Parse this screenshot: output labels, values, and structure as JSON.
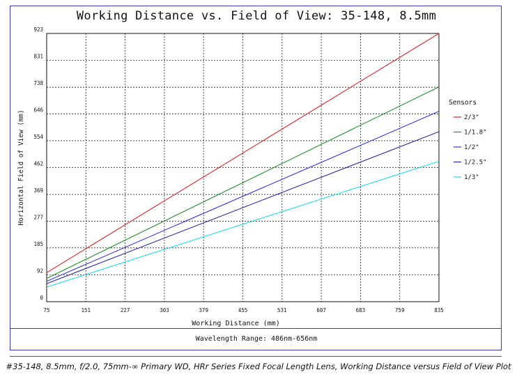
{
  "chart_data": {
    "type": "line",
    "title": "Working Distance vs. Field of View: 35-148, 8.5mm",
    "xlabel": "Working Distance (mm)",
    "ylabel": "Horizontal Field of View (mm)",
    "xlim": [
      75,
      835
    ],
    "ylim": [
      0,
      923
    ],
    "x_ticks": [
      "75",
      "151",
      "227",
      "303",
      "379",
      "455",
      "531",
      "607",
      "683",
      "759",
      "835"
    ],
    "y_ticks": [
      "0",
      "92",
      "185",
      "277",
      "369",
      "462",
      "554",
      "646",
      "738",
      "831",
      "923"
    ],
    "grid": true,
    "legend_title": "Sensors",
    "legend_position": "right",
    "series": [
      {
        "name": "2/3\"",
        "color": "#d9252a",
        "x": [
          75,
          835
        ],
        "y": [
          100,
          923
        ]
      },
      {
        "name": "1/1.8\"",
        "color": "#1f8f2a",
        "x": [
          75,
          835
        ],
        "y": [
          80,
          739
        ]
      },
      {
        "name": "1/2\"",
        "color": "#3535d6",
        "x": [
          75,
          835
        ],
        "y": [
          70,
          655
        ]
      },
      {
        "name": "1/2.5\"",
        "color": "#2a2aa0",
        "x": [
          75,
          835
        ],
        "y": [
          62,
          585
        ]
      },
      {
        "name": "1/3\"",
        "color": "#18dcea",
        "x": [
          75,
          835
        ],
        "y": [
          50,
          483
        ]
      }
    ]
  },
  "footer": {
    "wavelength": "Wavelength Range: 486nm-656nm"
  },
  "caption": "#35-148, 8.5mm, f/2.0, 75mm-∞ Primary WD, HRr Series Fixed Focal Length Lens, Working Distance versus Field of View Plot"
}
